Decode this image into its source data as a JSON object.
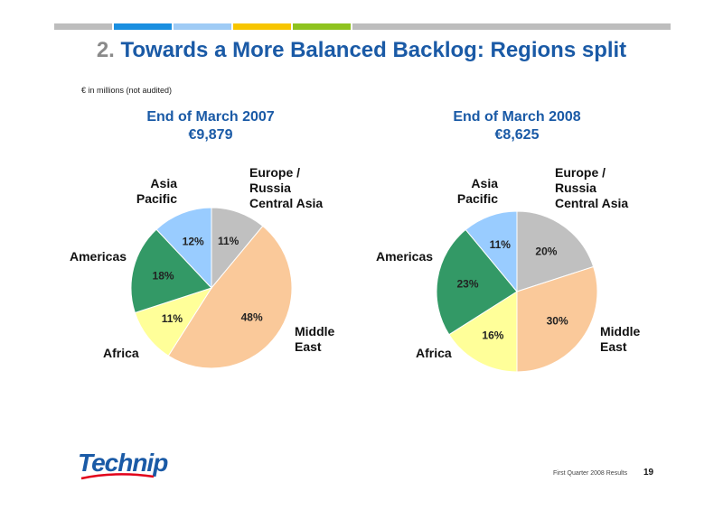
{
  "header": {
    "bars": [
      "#bdbdbd",
      "#1a8fe0",
      "#9fcbf5",
      "#f7c500",
      "#8fc31f",
      "#bdbdbd"
    ],
    "title_num": "2.",
    "title_text": "Towards a More Balanced Backlog: Regions split"
  },
  "note": "€ in millions (not audited)",
  "chart_data": [
    {
      "type": "pie",
      "title": "End of March 2007",
      "subtitle": "€9,879",
      "labels": [
        "Europe / Russia Central Asia",
        "Middle East",
        "Africa",
        "Americas",
        "Asia Pacific"
      ],
      "values": [
        11,
        48,
        11,
        18,
        12
      ],
      "colors": [
        "#c0c0c0",
        "#fac99a",
        "#ffff99",
        "#339966",
        "#99ccff"
      ],
      "value_labels": [
        "11%",
        "48%",
        "11%",
        "18%",
        "12%"
      ]
    },
    {
      "type": "pie",
      "title": "End of March 2008",
      "subtitle": "€8,625",
      "labels": [
        "Europe / Russia Central Asia",
        "Middle East",
        "Africa",
        "Americas",
        "Asia Pacific"
      ],
      "values": [
        20,
        30,
        16,
        23,
        11
      ],
      "colors": [
        "#c0c0c0",
        "#fac99a",
        "#ffff99",
        "#339966",
        "#99ccff"
      ],
      "value_labels": [
        "20%",
        "30%",
        "16%",
        "23%",
        "11%"
      ]
    }
  ],
  "region_labels": {
    "europe": [
      "Europe /",
      "Russia",
      "Central Asia"
    ],
    "middle_east": [
      "Middle",
      "East"
    ],
    "africa": "Africa",
    "americas": "Americas",
    "asia": [
      "Asia",
      "Pacific"
    ]
  },
  "footer": {
    "logo": "Technip",
    "text": "First Quarter 2008 Results",
    "page": "19"
  }
}
